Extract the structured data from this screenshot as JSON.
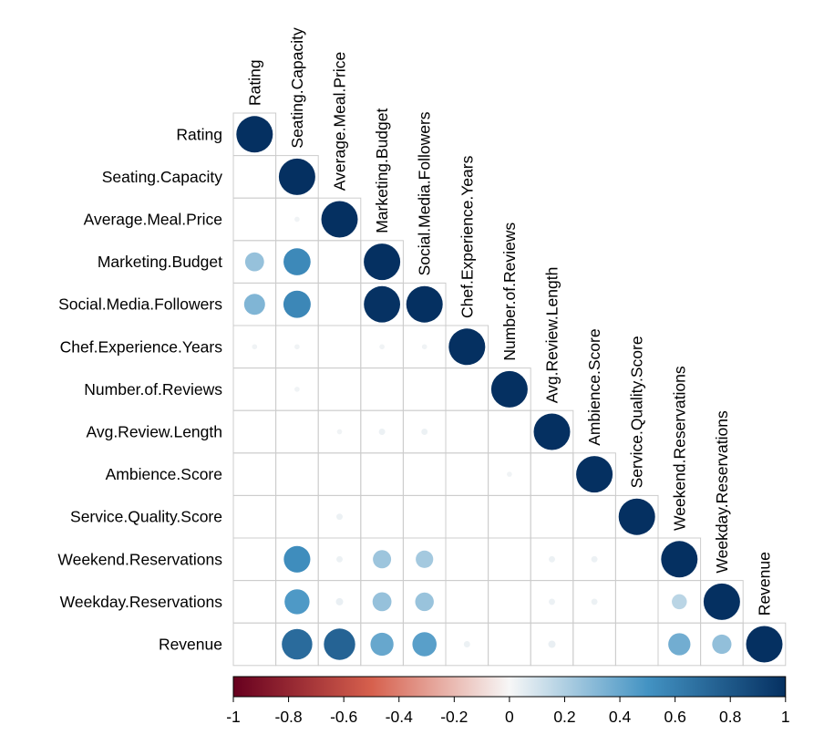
{
  "chart_data": {
    "type": "heatmap",
    "subtype": "correlation-lower-circles",
    "variables": [
      "Rating",
      "Seating.Capacity",
      "Average.Meal.Price",
      "Marketing.Budget",
      "Social.Media.Followers",
      "Chef.Experience.Years",
      "Number.of.Reviews",
      "Avg.Review.Length",
      "Ambience.Score",
      "Service.Quality.Score",
      "Weekend.Reservations",
      "Weekday.Reservations",
      "Revenue"
    ],
    "matrix": [
      [
        1.0
      ],
      [
        0.0,
        1.0
      ],
      [
        0.0,
        0.02,
        1.0
      ],
      [
        0.27,
        0.55,
        0.0,
        1.0
      ],
      [
        0.33,
        0.56,
        0.0,
        0.99,
        1.0
      ],
      [
        0.02,
        0.02,
        0.0,
        0.02,
        0.02,
        1.0
      ],
      [
        0.0,
        0.02,
        0.0,
        0.0,
        0.0,
        0.0,
        1.0
      ],
      [
        0.0,
        0.0,
        0.02,
        0.03,
        0.03,
        0.0,
        0.0,
        1.0
      ],
      [
        0.0,
        0.0,
        0.0,
        0.0,
        0.0,
        0.0,
        0.02,
        0.0,
        1.0
      ],
      [
        0.0,
        0.0,
        0.03,
        0.0,
        0.0,
        0.0,
        0.0,
        0.0,
        0.0,
        1.0
      ],
      [
        0.0,
        0.53,
        0.03,
        0.25,
        0.23,
        0.0,
        0.0,
        0.03,
        0.03,
        0.0,
        1.0
      ],
      [
        0.0,
        0.47,
        0.04,
        0.27,
        0.26,
        0.0,
        0.0,
        0.03,
        0.03,
        0.0,
        0.17,
        1.0
      ],
      [
        0.0,
        0.7,
        0.74,
        0.4,
        0.44,
        0.03,
        0.0,
        0.04,
        0.0,
        0.0,
        0.37,
        0.28,
        1.0
      ]
    ],
    "colorbar": {
      "range": [
        -1,
        1
      ],
      "ticks": [
        "-1",
        "-0.8",
        "-0.6",
        "-0.4",
        "-0.2",
        "0",
        "0.2",
        "0.4",
        "0.6",
        "0.8",
        "1"
      ]
    },
    "colors": {
      "negative_strong": "#67001f",
      "negative_mid": "#d6604d",
      "neutral": "#f7f7f7",
      "positive_mid": "#4393c3",
      "positive_strong": "#053061",
      "grid": "#cccccc"
    }
  }
}
